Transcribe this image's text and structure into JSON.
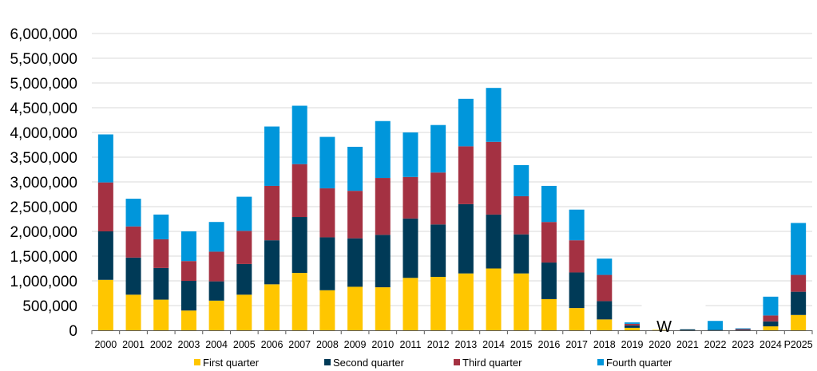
{
  "chart_data": {
    "type": "bar",
    "stacked": true,
    "title": "",
    "xlabel": "",
    "ylabel": "",
    "ylim": [
      0,
      6000000
    ],
    "yticks": [
      0,
      500000,
      1000000,
      1500000,
      2000000,
      2500000,
      3000000,
      3500000,
      4000000,
      4500000,
      5000000,
      5500000,
      6000000
    ],
    "ytick_labels": [
      "0",
      "500,000",
      "1,000,000",
      "1,500,000",
      "2,000,000",
      "2,500,000",
      "3,000,000",
      "3,500,000",
      "4,000,000",
      "4,500,000",
      "5,000,000",
      "5,500,000",
      "6,000,000"
    ],
    "grid": true,
    "legend_position": "bottom",
    "categories": [
      "2000",
      "2001",
      "2002",
      "2003",
      "2004",
      "2005",
      "2006",
      "2007",
      "2008",
      "2009",
      "2010",
      "2011",
      "2012",
      "2013",
      "2014",
      "2015",
      "2016",
      "2017",
      "2018",
      "2019",
      "2020",
      "2021",
      "2022",
      "2023",
      "2024",
      "P2025"
    ],
    "series": [
      {
        "name": "First quarter",
        "color": "#FFC600",
        "values": [
          1020000,
          720000,
          620000,
          400000,
          600000,
          720000,
          930000,
          1160000,
          810000,
          880000,
          870000,
          1060000,
          1080000,
          1150000,
          1250000,
          1150000,
          630000,
          450000,
          220000,
          50000,
          10000,
          0,
          0,
          0,
          80000,
          310000
        ]
      },
      {
        "name": "Second quarter",
        "color": "#003A57",
        "values": [
          980000,
          750000,
          640000,
          600000,
          390000,
          620000,
          890000,
          1130000,
          1070000,
          980000,
          1060000,
          1200000,
          1060000,
          1400000,
          1090000,
          790000,
          740000,
          720000,
          370000,
          50000,
          0,
          20000,
          10000,
          10000,
          100000,
          470000
        ]
      },
      {
        "name": "Third quarter",
        "color": "#A43142",
        "values": [
          990000,
          630000,
          580000,
          400000,
          600000,
          670000,
          1100000,
          1070000,
          990000,
          960000,
          1150000,
          840000,
          1050000,
          1170000,
          1470000,
          770000,
          820000,
          650000,
          530000,
          30000,
          0,
          0,
          0,
          20000,
          120000,
          340000
        ]
      },
      {
        "name": "Fourth quarter",
        "color": "#0096DB",
        "values": [
          970000,
          560000,
          500000,
          600000,
          600000,
          690000,
          1200000,
          1180000,
          1040000,
          890000,
          1150000,
          900000,
          960000,
          960000,
          1090000,
          630000,
          730000,
          620000,
          330000,
          30000,
          0,
          0,
          180000,
          10000,
          380000,
          1050000
        ]
      }
    ],
    "annotations": [
      {
        "text": "W",
        "category": "2020"
      }
    ]
  },
  "gridline_color": "#D9D9D9",
  "axis_color": "#595959"
}
